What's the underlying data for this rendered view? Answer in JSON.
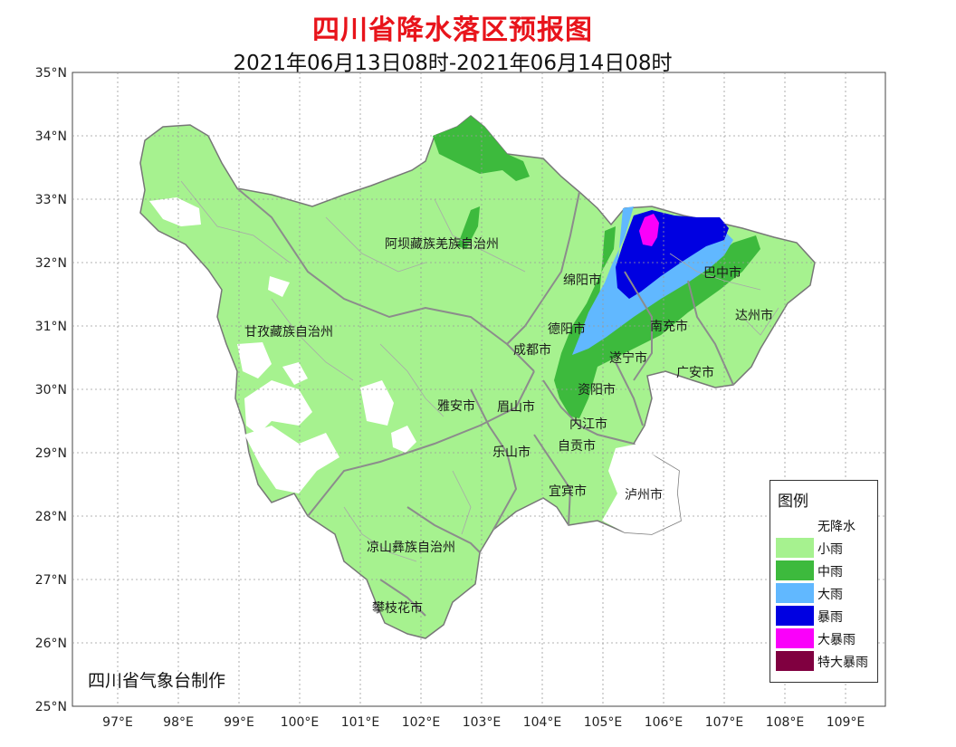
{
  "title": "四川省降水落区预报图",
  "subtitle": "2021年06月13日08时-2021年06月14日08时",
  "credit": "四川省气象台制作",
  "axes": {
    "lat_labels": [
      "35°N",
      "34°N",
      "33°N",
      "32°N",
      "31°N",
      "30°N",
      "29°N",
      "28°N",
      "27°N",
      "26°N",
      "25°N"
    ],
    "lon_labels": [
      "97°E",
      "98°E",
      "99°E",
      "100°E",
      "101°E",
      "102°E",
      "103°E",
      "104°E",
      "105°E",
      "106°E",
      "107°E",
      "108°E",
      "109°E"
    ]
  },
  "regions": [
    {
      "key": "aba",
      "label": "阿坝藏族羌族自治州"
    },
    {
      "key": "ganzi",
      "label": "甘孜藏族自治州"
    },
    {
      "key": "mianyang",
      "label": "绵阳市"
    },
    {
      "key": "bazhong",
      "label": "巴中市"
    },
    {
      "key": "dazhou",
      "label": "达州市"
    },
    {
      "key": "deyang",
      "label": "德阳市"
    },
    {
      "key": "nanchong",
      "label": "南充市"
    },
    {
      "key": "chengdu",
      "label": "成都市"
    },
    {
      "key": "suining",
      "label": "遂宁市"
    },
    {
      "key": "guangan",
      "label": "广安市"
    },
    {
      "key": "ziyang",
      "label": "资阳市"
    },
    {
      "key": "yaan",
      "label": "雅安市"
    },
    {
      "key": "meishan",
      "label": "眉山市"
    },
    {
      "key": "neijiang",
      "label": "内江市"
    },
    {
      "key": "leshan",
      "label": "乐山市"
    },
    {
      "key": "zigong",
      "label": "自贡市"
    },
    {
      "key": "yibin",
      "label": "宜宾市"
    },
    {
      "key": "luzhou",
      "label": "泸州市"
    },
    {
      "key": "liangshan",
      "label": "凉山彝族自治州"
    },
    {
      "key": "panzhihua",
      "label": "攀枝花市"
    }
  ],
  "legend": {
    "title": "图例",
    "items": [
      {
        "label": "无降水",
        "color": "#ffffff"
      },
      {
        "label": "小雨",
        "color": "#a6f28f"
      },
      {
        "label": "中雨",
        "color": "#3dba3d"
      },
      {
        "label": "大雨",
        "color": "#61b8ff"
      },
      {
        "label": "暴雨",
        "color": "#0000e1"
      },
      {
        "label": "大暴雨",
        "color": "#fa00fa"
      },
      {
        "label": "特大暴雨",
        "color": "#800040"
      }
    ]
  }
}
